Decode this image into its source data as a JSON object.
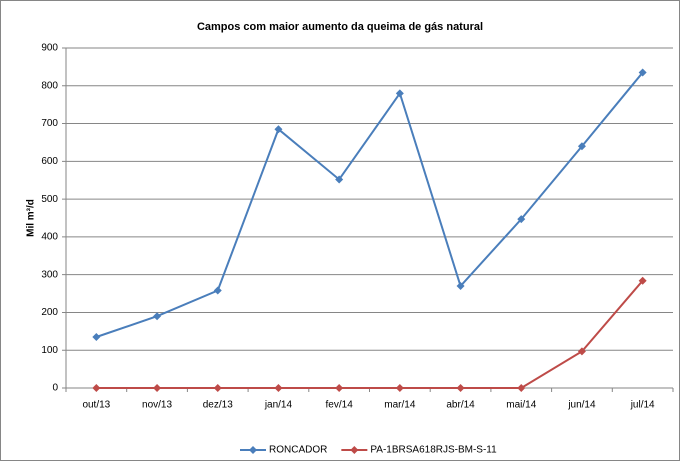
{
  "chart_data": {
    "type": "line",
    "title": "Campos com maior aumento da queima de gás natural",
    "y_label": "Mil m³/d",
    "categories": [
      "out/13",
      "nov/13",
      "dez/13",
      "jan/14",
      "fev/14",
      "mar/14",
      "abr/14",
      "mai/14",
      "jun/14",
      "jul/14"
    ],
    "series": [
      {
        "name": "RONCADOR",
        "color": "#4a7ebb",
        "values": [
          135,
          190,
          258,
          685,
          552,
          780,
          270,
          447,
          640,
          835
        ]
      },
      {
        "name": "PA-1BRSA618RJS-BM-S-11",
        "color": "#be4b48",
        "values": [
          0,
          0,
          0,
          0,
          0,
          0,
          0,
          0,
          97,
          284
        ]
      }
    ],
    "ylim": [
      0,
      900
    ],
    "yticks": [
      0,
      100,
      200,
      300,
      400,
      500,
      600,
      700,
      800,
      900
    ],
    "grid": true,
    "legend": "bottom"
  }
}
